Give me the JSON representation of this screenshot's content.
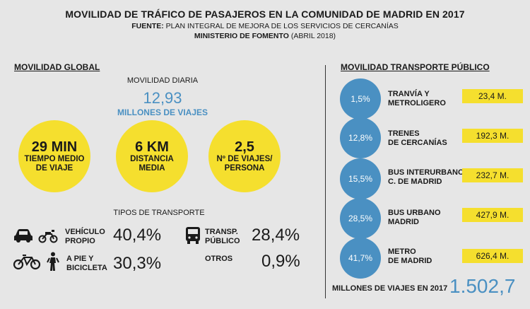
{
  "header": {
    "title": "MOVILIDAD DE TRÁFICO DE PASAJEROS EN LA COMUNIDAD DE MADRID EN 2017",
    "source_prefix": "FUENTE:",
    "source_text": "PLAN INTEGRAL DE MEJORA DE LOS SERVICIOS DE CERCANÍAS",
    "ministry": "MINISTERIO DE FOMENTO",
    "ministry_date": "(ABRIL 2018)"
  },
  "global": {
    "section_title": "MOVILIDAD GLOBAL",
    "daily_label": "MOVILIDAD DIARIA",
    "daily_value": "12,93",
    "daily_unit": "MILLONES DE VIAJES",
    "stats": [
      {
        "value": "29 MIN",
        "label1": "TIEMPO MEDIO",
        "label2": "DE VIAJE"
      },
      {
        "value": "6 KM",
        "label1": "DISTANCIA",
        "label2": "MEDIA"
      },
      {
        "value": "2,5",
        "label1": "Nº DE VIAJES/",
        "label2": "PERSONA"
      }
    ],
    "types_title": "TIPOS DE TRANSPORTE",
    "types": [
      {
        "label1": "VEHÍCULO",
        "label2": "PROPIO",
        "value": "40,4%",
        "icons": [
          "car-icon",
          "motorbike-icon"
        ]
      },
      {
        "label1": "TRANSP.",
        "label2": "PÚBLICO",
        "value": "28,4%",
        "icons": [
          "bus-icon"
        ]
      },
      {
        "label1": "A PIE Y",
        "label2": "BICICLETA",
        "value": "30,3%",
        "icons": [
          "bicycle-icon",
          "pedestrian-icon"
        ]
      },
      {
        "label1": "OTROS",
        "label2": "",
        "value": "0,9%",
        "icons": []
      }
    ]
  },
  "public": {
    "section_title": "MOVILIDAD TRANSPORTE PÚBLICO",
    "items": [
      {
        "percent": "1,5%",
        "label1": "TRANVÍA Y",
        "label2": "METROLIGERO",
        "value": "23,4 M."
      },
      {
        "percent": "12,8%",
        "label1": "TRENES",
        "label2": "DE CERCANÍAS",
        "value": "192,3 M."
      },
      {
        "percent": "15,5%",
        "label1": "BUS INTERURBANO",
        "label2": "C. DE MADRID",
        "value": "232,7 M."
      },
      {
        "percent": "28,5%",
        "label1": "BUS URBANO",
        "label2": "MADRID",
        "value": "427,9 M."
      },
      {
        "percent": "41,7%",
        "label1": "METRO",
        "label2": "DE MADRID",
        "value": "626,4 M."
      }
    ],
    "total_label": "MILLONES DE VIAJES EN 2017",
    "total_value": "1.502,7"
  },
  "colors": {
    "yellow": "#f5df2e",
    "blue": "#4a90c2",
    "background": "#e6e6e6"
  }
}
